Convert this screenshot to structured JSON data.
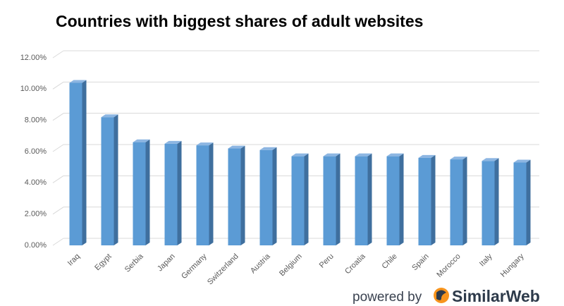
{
  "chart_data": {
    "type": "bar3d",
    "title": "Countries with biggest shares of adult websites",
    "categories": [
      "Iraq",
      "Egypt",
      "Serbia",
      "Japan",
      "Germany",
      "Switzerland",
      "Austria",
      "Belgium",
      "Peru",
      "Croatia",
      "Chile",
      "Spain",
      "Morocco",
      "Italy",
      "Hungary"
    ],
    "values": [
      10.4,
      8.2,
      6.6,
      6.5,
      6.4,
      6.2,
      6.1,
      5.7,
      5.7,
      5.7,
      5.7,
      5.6,
      5.5,
      5.4,
      5.3
    ],
    "color": "#5b9bd5",
    "ylim": [
      0,
      12
    ],
    "yticks": [
      {
        "value": 0,
        "label": "0.00%"
      },
      {
        "value": 2,
        "label": "2.00%"
      },
      {
        "value": 4,
        "label": "4.00%"
      },
      {
        "value": 6,
        "label": "6.00%"
      },
      {
        "value": 8,
        "label": "8.00%"
      },
      {
        "value": 10,
        "label": "10.00%"
      },
      {
        "value": 12,
        "label": "12.00%"
      }
    ],
    "grid": true,
    "footer": "powered by",
    "brand": "SimilarWeb"
  }
}
